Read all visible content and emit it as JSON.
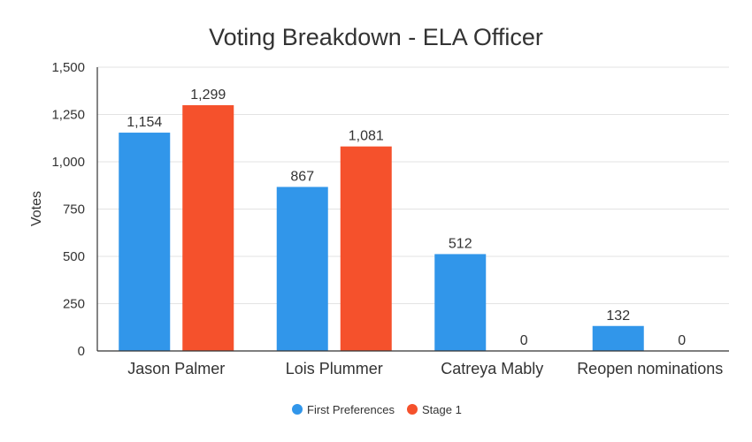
{
  "chart_data": {
    "type": "bar",
    "title": "Voting Breakdown - ELA Officer",
    "xlabel": "",
    "ylabel": "Votes",
    "ylim": [
      0,
      1500
    ],
    "yticks": [
      "0",
      "250",
      "500",
      "750",
      "1,000",
      "1,250",
      "1,500"
    ],
    "ytick_values": [
      0,
      250,
      500,
      750,
      1000,
      1250,
      1500
    ],
    "grid": true,
    "legend_position": "bottom",
    "categories": [
      "Jason Palmer",
      "Lois Plummer",
      "Catreya Mably",
      "Reopen nominations"
    ],
    "series": [
      {
        "name": "First Preferences",
        "color": "#3196ea",
        "values": [
          1154,
          867,
          512,
          132
        ],
        "labels": [
          "1,154",
          "867",
          "512",
          "132"
        ]
      },
      {
        "name": "Stage 1",
        "color": "#f5512c",
        "values": [
          1299,
          1081,
          0,
          0
        ],
        "labels": [
          "1,299",
          "1,081",
          "0",
          "0"
        ]
      }
    ]
  }
}
